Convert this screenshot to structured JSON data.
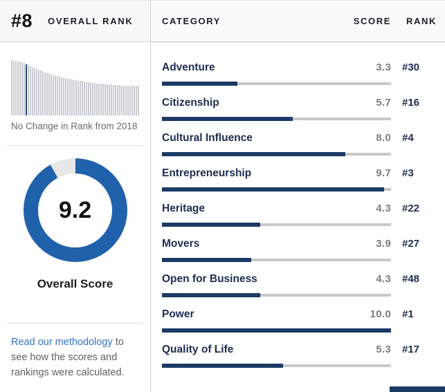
{
  "overall": {
    "rank": "#8",
    "rank_label": "OVERALL RANK",
    "trend_note": "No Change in Rank from 2018",
    "score": "9.2",
    "score_percent": 92,
    "score_label": "Overall Score"
  },
  "sparkline": {
    "highlight_index": 7,
    "values": [
      100,
      99,
      99,
      98,
      97,
      96,
      95,
      93,
      91,
      89,
      88,
      86,
      85,
      83,
      81,
      80,
      78,
      77,
      76,
      74,
      73,
      72,
      71,
      70,
      69,
      68,
      67,
      66,
      66,
      65,
      64,
      64,
      63,
      62,
      62,
      61,
      61,
      60,
      60,
      59,
      59,
      58,
      58,
      57,
      57,
      57,
      56,
      56,
      56,
      55,
      55,
      55,
      55,
      54,
      54,
      54,
      54,
      53,
      55,
      54,
      54,
      54
    ]
  },
  "methodology": {
    "link_text": "Read our methodology",
    "suffix_text": " to see how the scores and rankings were calculated."
  },
  "table": {
    "headers": {
      "category": "CATEGORY",
      "score": "SCORE",
      "rank": "RANK"
    },
    "rows": [
      {
        "category": "Adventure",
        "score": "3.3",
        "score_percent": 33,
        "rank": "#30"
      },
      {
        "category": "Citizenship",
        "score": "5.7",
        "score_percent": 57,
        "rank": "#16"
      },
      {
        "category": "Cultural Influence",
        "score": "8.0",
        "score_percent": 80,
        "rank": "#4"
      },
      {
        "category": "Entrepreneurship",
        "score": "9.7",
        "score_percent": 97,
        "rank": "#3"
      },
      {
        "category": "Heritage",
        "score": "4.3",
        "score_percent": 43,
        "rank": "#22"
      },
      {
        "category": "Movers",
        "score": "3.9",
        "score_percent": 39,
        "rank": "#27"
      },
      {
        "category": "Open for Business",
        "score": "4.3",
        "score_percent": 43,
        "rank": "#48"
      },
      {
        "category": "Power",
        "score": "10.0",
        "score_percent": 100,
        "rank": "#1"
      },
      {
        "category": "Quality of Life",
        "score": "5.3",
        "score_percent": 53,
        "rank": "#17"
      }
    ]
  },
  "colors": {
    "bar_fill": "#1b3a64",
    "bar_track": "#c8c8c8",
    "donut_ring": "#2061ab",
    "donut_track": "#e7e7e7",
    "link": "#3273c4",
    "sparkline_bar": "#c9ccd1",
    "sparkline_highlight": "#1e4a7a"
  }
}
